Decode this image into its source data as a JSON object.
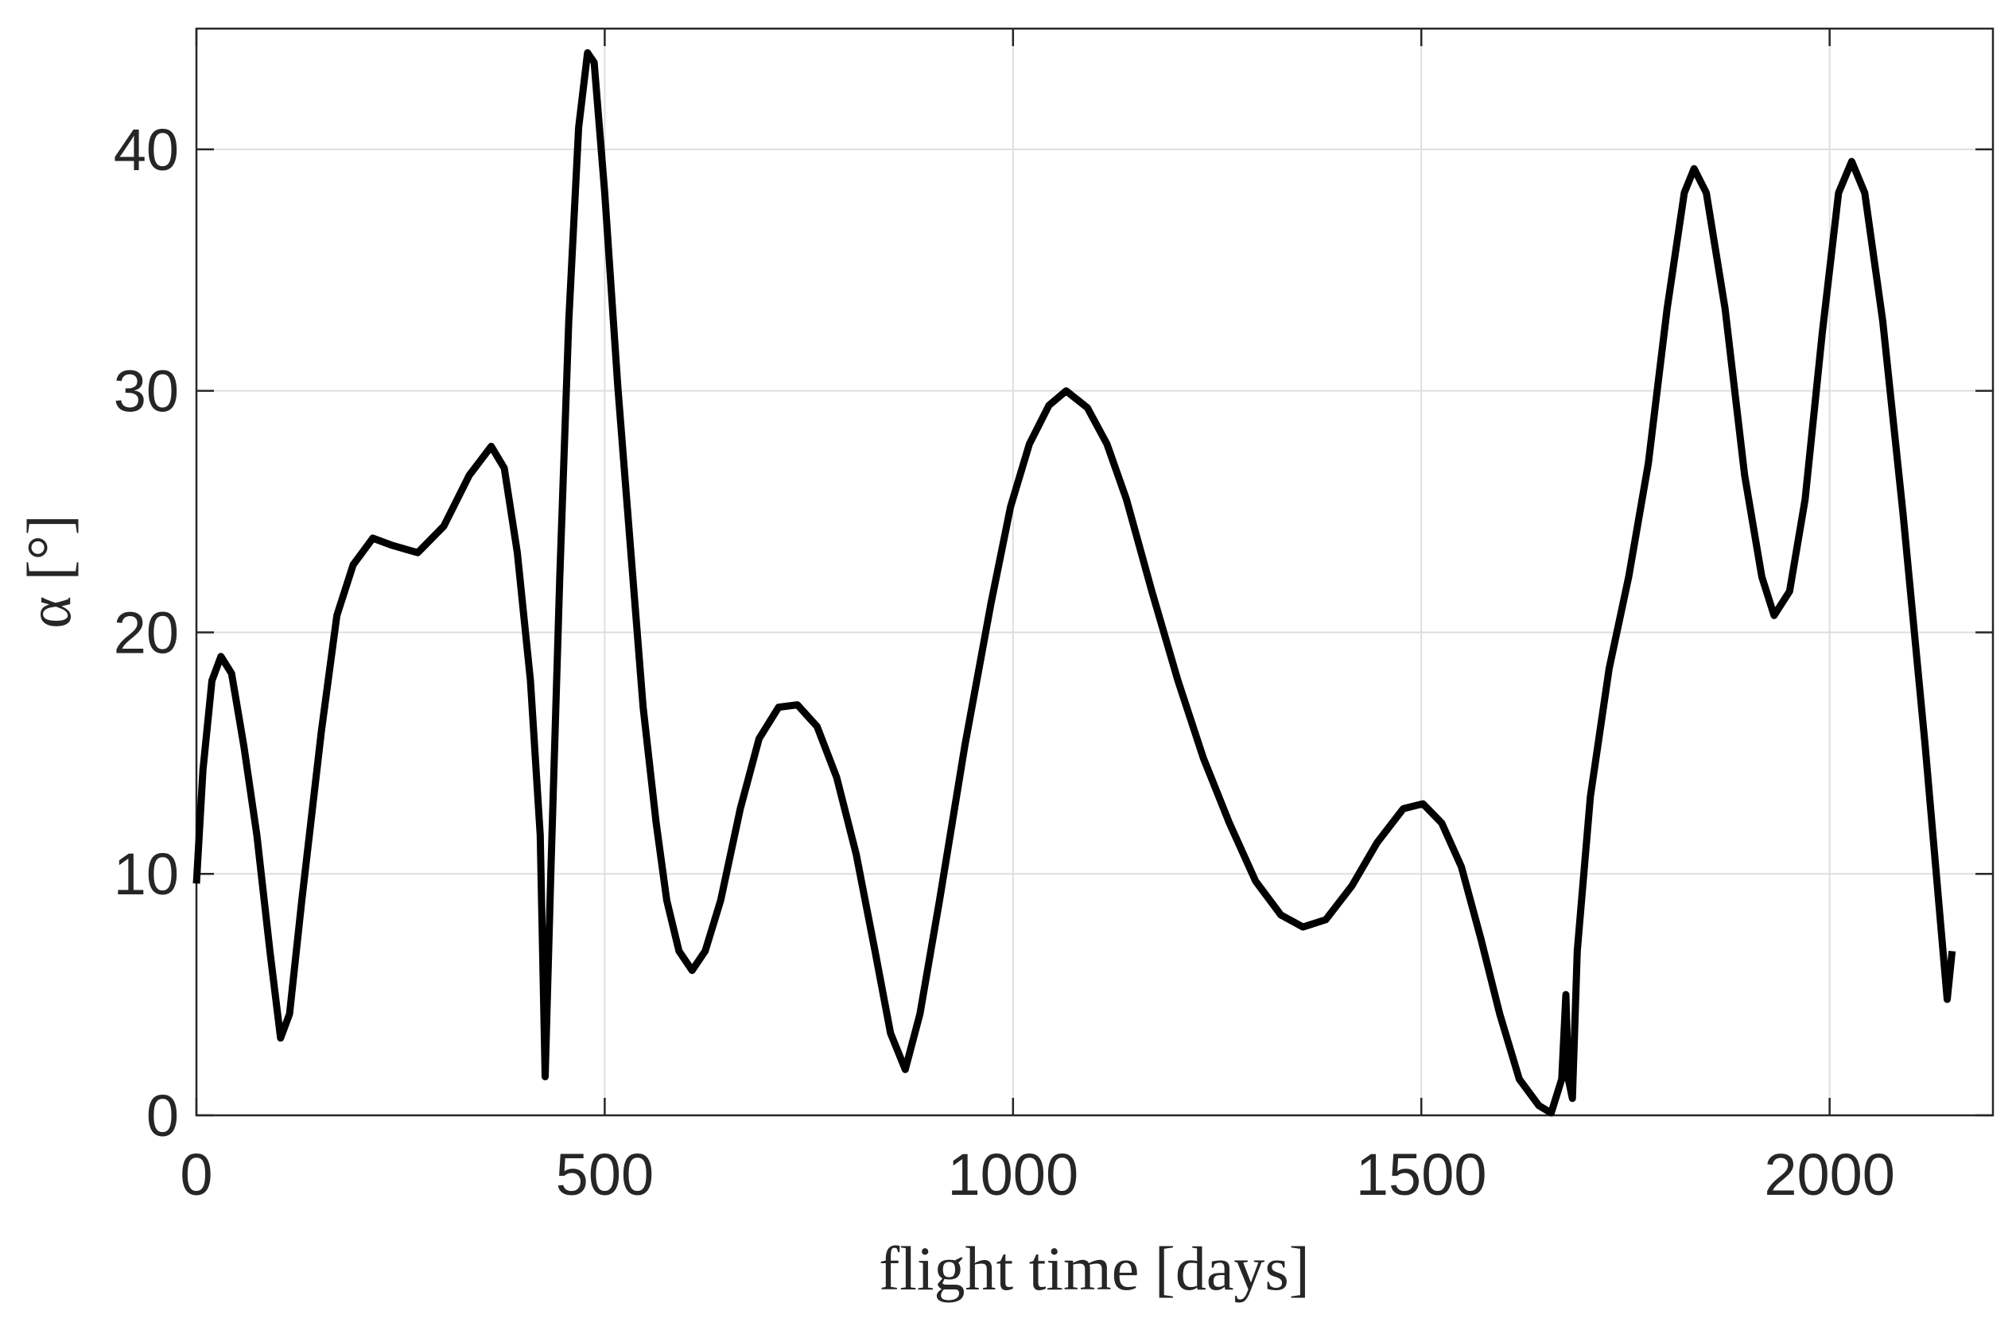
{
  "chart_data": {
    "type": "line",
    "xlabel": "flight time [days]",
    "ylabel": "α [°]",
    "xlim": [
      0,
      2200
    ],
    "ylim": [
      0,
      45
    ],
    "xticks": [
      0,
      500,
      1000,
      1500,
      2000
    ],
    "yticks": [
      0,
      10,
      20,
      30,
      40
    ],
    "grid": true,
    "series": [
      {
        "color": "#000000",
        "x": [
          0,
          8,
          19,
          30,
          43,
          58,
          74,
          90,
          103,
          114,
          129,
          153,
          172,
          192,
          216,
          240,
          271,
          303,
          334,
          361,
          377,
          393,
          409,
          421,
          427,
          434,
          445,
          456,
          468,
          479,
          487,
          500,
          516,
          532,
          547,
          563,
          576,
          591,
          607,
          623,
          642,
          666,
          689,
          713,
          736,
          760,
          784,
          808,
          831,
          850,
          868,
          886,
          910,
          941,
          973,
          997,
          1020,
          1044,
          1065,
          1091,
          1115,
          1139,
          1170,
          1202,
          1233,
          1265,
          1297,
          1328,
          1355,
          1383,
          1415,
          1446,
          1478,
          1502,
          1525,
          1549,
          1573,
          1596,
          1620,
          1644,
          1659,
          1672,
          1677,
          1680,
          1685,
          1691,
          1707,
          1730,
          1754,
          1778,
          1801,
          1822,
          1834,
          1849,
          1872,
          1896,
          1917,
          1932,
          1951,
          1970,
          1991,
          2011,
          2027,
          2043,
          2065,
          2090,
          2117,
          2136,
          2144,
          2150
        ],
        "values": [
          9.6,
          14.3,
          18,
          19,
          18.3,
          15.3,
          11.6,
          6.8,
          3.2,
          4.2,
          8.9,
          15.9,
          20.7,
          22.8,
          23.9,
          23.6,
          23.3,
          24.4,
          26.5,
          27.7,
          26.8,
          23.3,
          18,
          11.6,
          1.6,
          10,
          22.3,
          32.9,
          40.9,
          44,
          43.6,
          38.2,
          30.2,
          23.3,
          16.9,
          12.1,
          8.9,
          6.8,
          6,
          6.8,
          8.9,
          12.7,
          15.6,
          16.9,
          17,
          16.1,
          14,
          10.8,
          6.8,
          3.4,
          1.9,
          4.2,
          8.9,
          15.3,
          21.2,
          25.2,
          27.8,
          29.4,
          30,
          29.3,
          27.8,
          25.5,
          21.7,
          18,
          14.8,
          12.1,
          9.7,
          8.3,
          7.8,
          8.1,
          9.5,
          11.3,
          12.7,
          12.9,
          12.1,
          10.3,
          7.3,
          4.2,
          1.5,
          0.4,
          0.1,
          1.5,
          5,
          1.5,
          0.7,
          6.8,
          13.2,
          18.5,
          22.3,
          27,
          33.4,
          38.2,
          39.2,
          38.2,
          33.4,
          26.5,
          22.3,
          20.7,
          21.7,
          25.5,
          32.4,
          38.2,
          39.5,
          38.2,
          32.9,
          24.9,
          15.3,
          7.9,
          4.8,
          6.8
        ]
      }
    ]
  }
}
